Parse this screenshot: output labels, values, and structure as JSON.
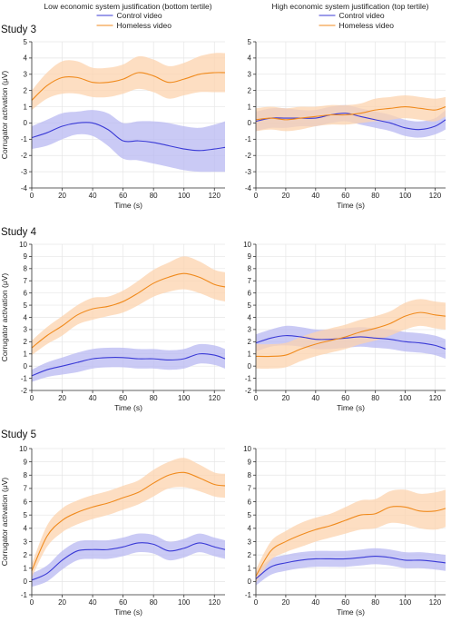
{
  "figure": {
    "column_titles": [
      "Low economic system justification (bottom tertile)",
      "High economic system justification (top tertile)"
    ],
    "row_titles": [
      "Study 3",
      "Study 4",
      "Study 5"
    ],
    "ylabel": "Corrugator activation (μV)",
    "xlabel": "Time (s)"
  },
  "colors": {
    "control": "#3a3ad6",
    "homeless": "#f08a1c",
    "control_band": "#b8b8f2",
    "homeless_band": "#fcd3ad"
  },
  "chart_data": [
    {
      "type": "line",
      "panel": "study3-low",
      "row_title": "Study 3",
      "legend": "top-center",
      "x": [
        0,
        10,
        20,
        30,
        40,
        50,
        60,
        70,
        80,
        90,
        100,
        110,
        120,
        127
      ],
      "xlim": [
        0,
        127
      ],
      "xticks": [
        0,
        20,
        40,
        60,
        80,
        100,
        120
      ],
      "ylim": [
        -4,
        5
      ],
      "yticks": [
        -4,
        -3,
        -2,
        -1,
        0,
        1,
        2,
        3,
        4,
        5
      ],
      "series": [
        {
          "name": "Control video",
          "values": [
            -0.9,
            -0.6,
            -0.2,
            0.0,
            0.0,
            -0.4,
            -1.1,
            -1.1,
            -1.2,
            -1.4,
            -1.6,
            -1.7,
            -1.6,
            -1.5
          ],
          "lower": [
            -1.6,
            -1.4,
            -1.0,
            -0.7,
            -0.8,
            -1.4,
            -2.2,
            -2.3,
            -2.5,
            -2.7,
            -2.9,
            -3.0,
            -3.0,
            -3.0
          ],
          "upper": [
            -0.2,
            0.2,
            0.6,
            0.7,
            0.8,
            0.6,
            0.0,
            0.1,
            0.1,
            0.0,
            -0.2,
            -0.3,
            -0.1,
            0.1
          ]
        },
        {
          "name": "Homeless video",
          "values": [
            1.4,
            2.3,
            2.8,
            2.8,
            2.5,
            2.5,
            2.7,
            3.1,
            2.9,
            2.5,
            2.7,
            3.0,
            3.1,
            3.1
          ],
          "lower": [
            0.8,
            1.5,
            1.8,
            1.8,
            1.6,
            1.6,
            1.8,
            2.1,
            1.9,
            1.5,
            1.7,
            1.9,
            1.9,
            1.9
          ],
          "upper": [
            2.0,
            3.1,
            3.8,
            3.8,
            3.4,
            3.4,
            3.6,
            4.1,
            3.9,
            3.5,
            3.7,
            4.1,
            4.3,
            4.3
          ]
        }
      ]
    },
    {
      "type": "line",
      "panel": "study3-high",
      "row_title": "",
      "legend": "top-center",
      "x": [
        0,
        10,
        20,
        30,
        40,
        50,
        60,
        70,
        80,
        90,
        100,
        110,
        120,
        127
      ],
      "xlim": [
        0,
        127
      ],
      "xticks": [
        0,
        20,
        40,
        60,
        80,
        100,
        120
      ],
      "ylim": [
        -4,
        5
      ],
      "yticks": [
        -4,
        -3,
        -2,
        -1,
        0,
        1,
        2,
        3,
        4,
        5
      ],
      "series": [
        {
          "name": "Control video",
          "values": [
            0.1,
            0.3,
            0.3,
            0.3,
            0.3,
            0.5,
            0.6,
            0.4,
            0.2,
            0.0,
            -0.3,
            -0.4,
            -0.2,
            0.2
          ],
          "lower": [
            -0.5,
            -0.3,
            -0.3,
            -0.2,
            -0.2,
            0.0,
            0.1,
            -0.1,
            -0.3,
            -0.5,
            -0.8,
            -0.9,
            -0.7,
            -0.4
          ],
          "upper": [
            0.7,
            0.9,
            0.9,
            0.8,
            0.8,
            1.0,
            1.1,
            0.9,
            0.7,
            0.5,
            0.2,
            0.1,
            0.3,
            0.8
          ]
        },
        {
          "name": "Homeless video",
          "values": [
            0.2,
            0.3,
            0.2,
            0.3,
            0.4,
            0.5,
            0.5,
            0.6,
            0.8,
            0.9,
            1.0,
            0.9,
            0.8,
            1.0
          ],
          "lower": [
            -0.5,
            -0.4,
            -0.5,
            -0.4,
            -0.2,
            -0.1,
            -0.1,
            0.0,
            0.1,
            0.2,
            0.3,
            0.2,
            0.1,
            0.4
          ],
          "upper": [
            0.9,
            1.0,
            0.9,
            1.0,
            1.0,
            1.1,
            1.1,
            1.2,
            1.5,
            1.6,
            1.7,
            1.6,
            1.5,
            1.6
          ]
        }
      ]
    },
    {
      "type": "line",
      "panel": "study4-low",
      "row_title": "Study 4",
      "legend": "none",
      "x": [
        0,
        10,
        20,
        30,
        40,
        50,
        60,
        70,
        80,
        90,
        100,
        110,
        120,
        127
      ],
      "xlim": [
        0,
        127
      ],
      "xticks": [
        0,
        20,
        40,
        60,
        80,
        100,
        120
      ],
      "ylim": [
        -2,
        10
      ],
      "yticks": [
        -2,
        -1,
        0,
        1,
        2,
        3,
        4,
        5,
        6,
        7,
        8,
        9,
        10
      ],
      "series": [
        {
          "name": "Control video",
          "values": [
            -0.8,
            -0.3,
            0.0,
            0.3,
            0.6,
            0.7,
            0.7,
            0.6,
            0.6,
            0.5,
            0.6,
            1.0,
            0.9,
            0.6
          ],
          "lower": [
            -1.3,
            -0.9,
            -0.7,
            -0.5,
            -0.2,
            -0.1,
            -0.1,
            -0.2,
            -0.2,
            -0.3,
            -0.2,
            0.2,
            0.1,
            -0.2
          ],
          "upper": [
            -0.3,
            0.3,
            0.7,
            1.1,
            1.4,
            1.5,
            1.5,
            1.4,
            1.4,
            1.3,
            1.4,
            1.8,
            1.7,
            1.4
          ]
        },
        {
          "name": "Homeless video",
          "values": [
            1.5,
            2.5,
            3.3,
            4.2,
            4.7,
            4.9,
            5.3,
            6.0,
            6.8,
            7.3,
            7.6,
            7.3,
            6.7,
            6.5
          ],
          "lower": [
            0.9,
            1.8,
            2.5,
            3.4,
            3.8,
            4.1,
            4.4,
            5.0,
            5.7,
            6.1,
            6.3,
            6.0,
            5.5,
            5.3
          ],
          "upper": [
            2.1,
            3.2,
            4.1,
            5.0,
            5.6,
            5.7,
            6.2,
            7.0,
            7.9,
            8.5,
            9.0,
            8.6,
            7.9,
            7.7
          ]
        }
      ]
    },
    {
      "type": "line",
      "panel": "study4-high",
      "row_title": "",
      "legend": "none",
      "x": [
        0,
        10,
        20,
        30,
        40,
        50,
        60,
        70,
        80,
        90,
        100,
        110,
        120,
        127
      ],
      "xlim": [
        0,
        127
      ],
      "xticks": [
        0,
        20,
        40,
        60,
        80,
        100,
        120
      ],
      "ylim": [
        -2,
        10
      ],
      "yticks": [
        -2,
        -1,
        0,
        1,
        2,
        3,
        4,
        5,
        6,
        7,
        8,
        9,
        10
      ],
      "series": [
        {
          "name": "Control video",
          "values": [
            1.9,
            2.3,
            2.5,
            2.4,
            2.2,
            2.2,
            2.3,
            2.4,
            2.3,
            2.2,
            2.0,
            1.9,
            1.7,
            1.4
          ],
          "lower": [
            1.2,
            1.6,
            1.7,
            1.6,
            1.4,
            1.4,
            1.5,
            1.6,
            1.5,
            1.4,
            1.2,
            1.1,
            0.9,
            0.6
          ],
          "upper": [
            2.6,
            3.0,
            3.3,
            3.2,
            3.0,
            3.0,
            3.1,
            3.2,
            3.1,
            3.0,
            2.8,
            2.7,
            2.5,
            2.2
          ]
        },
        {
          "name": "Homeless video",
          "values": [
            0.8,
            0.8,
            0.9,
            1.4,
            1.8,
            2.1,
            2.4,
            2.8,
            3.1,
            3.5,
            4.1,
            4.4,
            4.2,
            4.1
          ],
          "lower": [
            -0.2,
            -0.2,
            -0.1,
            0.4,
            0.8,
            1.1,
            1.4,
            1.8,
            2.1,
            2.5,
            3.0,
            3.3,
            3.1,
            3.0
          ],
          "upper": [
            1.8,
            1.8,
            1.9,
            2.4,
            2.8,
            3.1,
            3.4,
            3.8,
            4.1,
            4.5,
            5.2,
            5.5,
            5.3,
            5.2
          ]
        }
      ]
    },
    {
      "type": "line",
      "panel": "study5-low",
      "row_title": "Study 5",
      "legend": "none",
      "x": [
        0,
        10,
        20,
        30,
        40,
        50,
        60,
        70,
        80,
        90,
        100,
        110,
        120,
        127
      ],
      "xlim": [
        0,
        127
      ],
      "xticks": [
        0,
        20,
        40,
        60,
        80,
        100,
        120
      ],
      "ylim": [
        -1,
        10
      ],
      "yticks": [
        -1,
        0,
        1,
        2,
        3,
        4,
        5,
        6,
        7,
        8,
        9,
        10
      ],
      "series": [
        {
          "name": "Control video",
          "values": [
            0.1,
            0.6,
            1.6,
            2.3,
            2.4,
            2.4,
            2.6,
            2.9,
            2.8,
            2.3,
            2.5,
            2.9,
            2.6,
            2.4
          ],
          "lower": [
            -0.4,
            0.0,
            0.9,
            1.6,
            1.7,
            1.7,
            1.9,
            2.2,
            2.1,
            1.6,
            1.8,
            2.2,
            1.9,
            1.7
          ],
          "upper": [
            0.6,
            1.2,
            2.3,
            3.0,
            3.1,
            3.1,
            3.3,
            3.6,
            3.5,
            3.0,
            3.2,
            3.6,
            3.3,
            3.1
          ]
        },
        {
          "name": "Homeless video",
          "values": [
            0.8,
            3.4,
            4.6,
            5.2,
            5.6,
            5.9,
            6.3,
            6.7,
            7.4,
            8.0,
            8.2,
            7.8,
            7.3,
            7.2
          ],
          "lower": [
            0.3,
            2.6,
            3.7,
            4.3,
            4.7,
            5.0,
            5.4,
            5.8,
            6.4,
            7.0,
            7.1,
            6.8,
            6.4,
            6.3
          ],
          "upper": [
            1.3,
            4.2,
            5.5,
            6.1,
            6.5,
            6.8,
            7.2,
            7.6,
            8.4,
            9.0,
            9.3,
            8.8,
            8.2,
            8.1
          ]
        }
      ]
    },
    {
      "type": "line",
      "panel": "study5-high",
      "row_title": "",
      "legend": "none",
      "x": [
        0,
        10,
        20,
        30,
        40,
        50,
        60,
        70,
        80,
        90,
        100,
        110,
        120,
        127
      ],
      "xlim": [
        0,
        127
      ],
      "xticks": [
        0,
        20,
        40,
        60,
        80,
        100,
        120
      ],
      "ylim": [
        -1,
        10
      ],
      "yticks": [
        -1,
        0,
        1,
        2,
        3,
        4,
        5,
        6,
        7,
        8,
        9,
        10
      ],
      "series": [
        {
          "name": "Control video",
          "values": [
            0.2,
            1.1,
            1.4,
            1.6,
            1.7,
            1.7,
            1.7,
            1.8,
            1.9,
            1.8,
            1.6,
            1.6,
            1.5,
            1.4
          ],
          "lower": [
            -0.3,
            0.5,
            0.8,
            1.0,
            1.1,
            1.1,
            1.1,
            1.2,
            1.3,
            1.2,
            1.0,
            1.0,
            0.9,
            0.8
          ],
          "upper": [
            0.7,
            1.7,
            2.0,
            2.2,
            2.3,
            2.3,
            2.3,
            2.4,
            2.5,
            2.4,
            2.2,
            2.2,
            2.1,
            2.0
          ]
        },
        {
          "name": "Homeless video",
          "values": [
            0.4,
            2.3,
            3.0,
            3.5,
            3.9,
            4.2,
            4.6,
            5.0,
            5.1,
            5.6,
            5.6,
            5.3,
            5.3,
            5.5
          ],
          "lower": [
            -0.1,
            1.6,
            2.2,
            2.6,
            3.0,
            3.3,
            3.6,
            3.9,
            4.0,
            4.4,
            4.3,
            4.0,
            3.9,
            4.1
          ],
          "upper": [
            0.9,
            3.0,
            3.8,
            4.4,
            4.8,
            5.1,
            5.6,
            6.1,
            6.2,
            6.8,
            6.9,
            6.6,
            6.7,
            6.9
          ]
        }
      ]
    }
  ]
}
